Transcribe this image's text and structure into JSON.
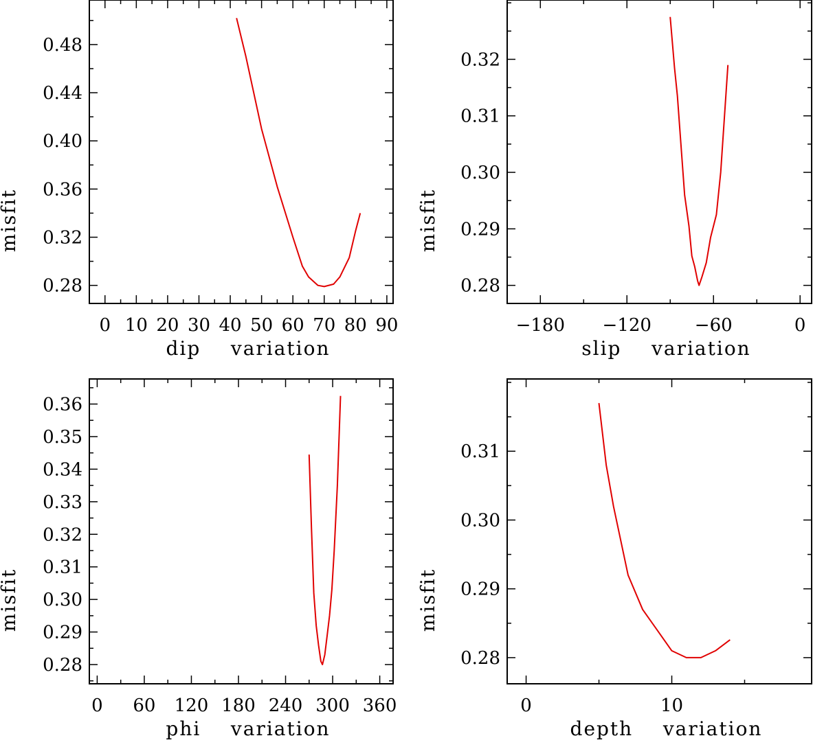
{
  "chart_data": [
    {
      "type": "line",
      "xlabel": "dip    variation",
      "ylabel": "misfit",
      "xlim": [
        -5,
        92
      ],
      "ylim": [
        0.265,
        0.517
      ],
      "xticks": [
        0,
        10,
        20,
        30,
        40,
        50,
        60,
        70,
        80,
        90
      ],
      "xtick_labels": [
        "0",
        "10",
        "20",
        "30",
        "40",
        "50",
        "60",
        "70",
        "80",
        "90"
      ],
      "yticks": [
        0.28,
        0.32,
        0.36,
        0.4,
        0.44,
        0.48
      ],
      "ytick_labels": [
        "0.28",
        "0.32",
        "0.36",
        "0.40",
        "0.44",
        "0.48"
      ],
      "series": [
        {
          "name": "misfit",
          "color": "#e00000",
          "x": [
            42,
            45,
            50,
            55,
            60,
            63,
            65,
            68,
            70,
            73,
            75,
            78,
            80,
            81.5
          ],
          "y": [
            0.502,
            0.47,
            0.41,
            0.362,
            0.32,
            0.296,
            0.287,
            0.28,
            0.279,
            0.281,
            0.287,
            0.303,
            0.325,
            0.34
          ]
        }
      ]
    },
    {
      "type": "line",
      "xlabel": "slip    variation",
      "ylabel": "misfit",
      "xlim": [
        -203,
        8
      ],
      "ylim": [
        0.2768,
        0.3305
      ],
      "xticks": [
        -180,
        -120,
        -60,
        0
      ],
      "xtick_labels": [
        "−180",
        "−120",
        "−60",
        "0"
      ],
      "yticks": [
        0.28,
        0.29,
        0.3,
        0.31,
        0.32
      ],
      "ytick_labels": [
        "0.28",
        "0.29",
        "0.30",
        "0.31",
        "0.32"
      ],
      "series": [
        {
          "name": "misfit",
          "color": "#e00000",
          "x": [
            -90,
            -87,
            -85,
            -82,
            -80,
            -77,
            -75,
            -73,
            -71,
            -70,
            -68,
            -65,
            -62,
            -58,
            -55,
            -50
          ],
          "y": [
            0.3275,
            0.3185,
            0.3135,
            0.303,
            0.296,
            0.2905,
            0.2852,
            0.2833,
            0.2808,
            0.28,
            0.2815,
            0.284,
            0.2885,
            0.2925,
            0.3,
            0.319
          ]
        }
      ]
    },
    {
      "type": "line",
      "xlabel": "phi    variation",
      "ylabel": "misfit",
      "xlim": [
        -10,
        377
      ],
      "ylim": [
        0.2741,
        0.3677
      ],
      "xticks": [
        0,
        60,
        120,
        180,
        240,
        300,
        360
      ],
      "xtick_labels": [
        "0",
        "60",
        "120",
        "180",
        "240",
        "300",
        "360"
      ],
      "yticks": [
        0.28,
        0.29,
        0.3,
        0.31,
        0.32,
        0.33,
        0.34,
        0.35,
        0.36
      ],
      "ytick_labels": [
        "0.28",
        "0.29",
        "0.30",
        "0.31",
        "0.32",
        "0.33",
        "0.34",
        "0.35",
        "0.36"
      ],
      "series": [
        {
          "name": "misfit",
          "color": "#e00000",
          "x": [
            270,
            273,
            276,
            279,
            282,
            285,
            287,
            290,
            293,
            296,
            299,
            302,
            306,
            310
          ],
          "y": [
            0.3445,
            0.322,
            0.302,
            0.292,
            0.286,
            0.281,
            0.28,
            0.283,
            0.289,
            0.295,
            0.303,
            0.315,
            0.335,
            0.3625
          ]
        }
      ]
    },
    {
      "type": "line",
      "xlabel": "depth    variation",
      "ylabel": "misfit",
      "xlim": [
        -1.3,
        19.6
      ],
      "ylim": [
        0.2762,
        0.3205
      ],
      "xticks": [
        0,
        10
      ],
      "xtick_labels": [
        "0",
        "10"
      ],
      "yticks": [
        0.28,
        0.29,
        0.3,
        0.31
      ],
      "ytick_labels": [
        "0.28",
        "0.29",
        "0.30",
        "0.31"
      ],
      "series": [
        {
          "name": "misfit",
          "color": "#e00000",
          "x": [
            5,
            5.5,
            6,
            7,
            8,
            9,
            10,
            11,
            12,
            13,
            14
          ],
          "y": [
            0.317,
            0.308,
            0.302,
            0.292,
            0.287,
            0.284,
            0.281,
            0.28,
            0.28,
            0.281,
            0.2826
          ]
        }
      ]
    }
  ]
}
